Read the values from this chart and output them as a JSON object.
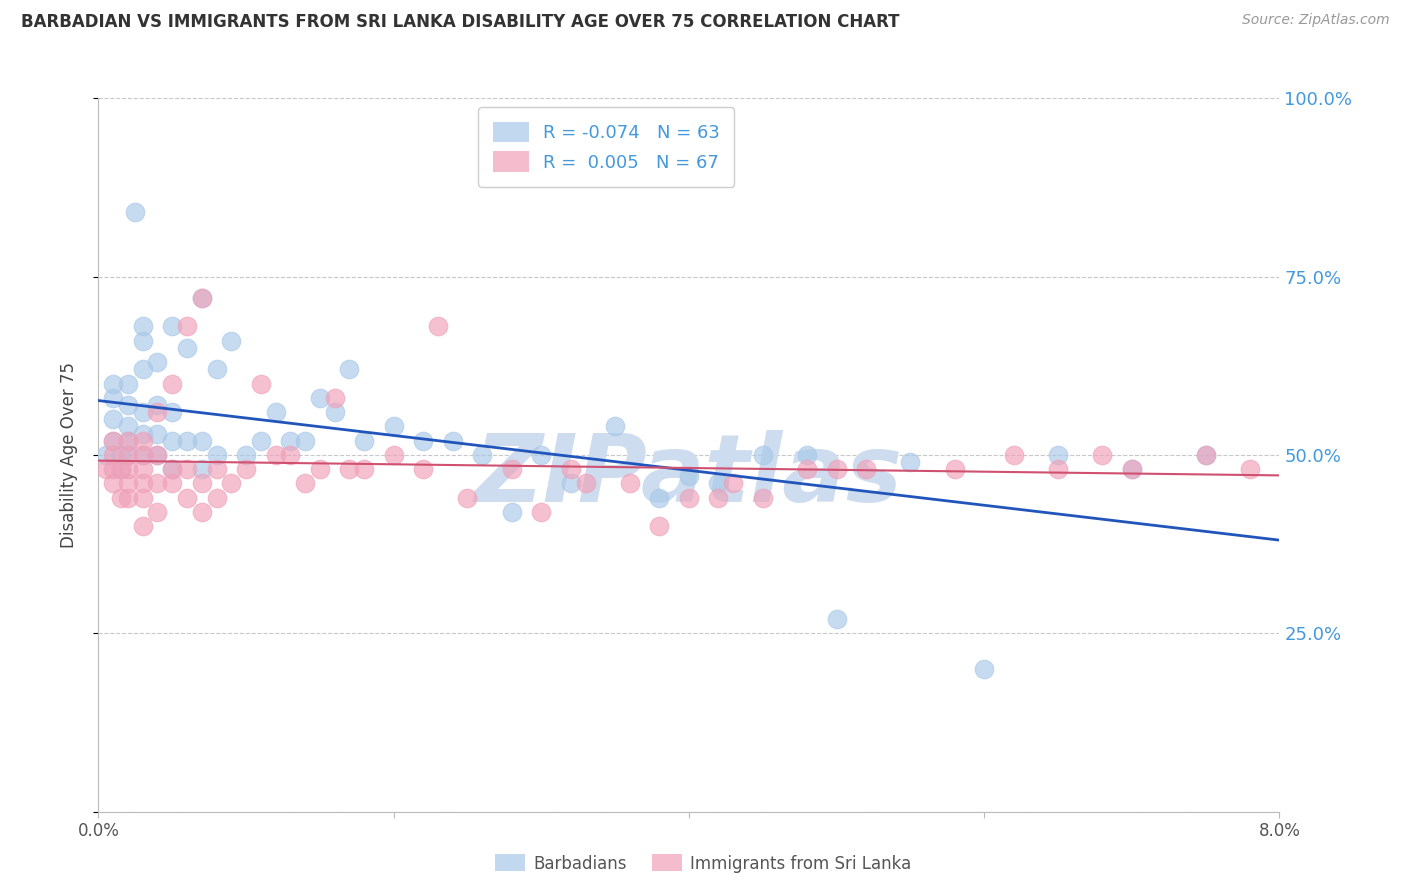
{
  "title": "BARBADIAN VS IMMIGRANTS FROM SRI LANKA DISABILITY AGE OVER 75 CORRELATION CHART",
  "source": "Source: ZipAtlas.com",
  "ylabel": "Disability Age Over 75",
  "blue_R": -0.074,
  "blue_N": 63,
  "pink_R": 0.005,
  "pink_N": 67,
  "blue_color": "#a8c8e8",
  "pink_color": "#f0a0b8",
  "blue_line_color": "#2255bb",
  "pink_line_color": "#d05070",
  "watermark": "ZIPatlas",
  "watermark_color": "#cddcef",
  "legend_label_blue": "Barbadians",
  "legend_label_pink": "Immigrants from Sri Lanka",
  "right_ytick_color": "#4499dd",
  "xlim": [
    0.0,
    0.08
  ],
  "ylim": [
    0.0,
    1.0
  ],
  "blue_x": [
    0.0005,
    0.001,
    0.001,
    0.001,
    0.001,
    0.0015,
    0.0015,
    0.002,
    0.002,
    0.002,
    0.002,
    0.002,
    0.0025,
    0.003,
    0.003,
    0.003,
    0.003,
    0.003,
    0.003,
    0.004,
    0.004,
    0.004,
    0.004,
    0.005,
    0.005,
    0.005,
    0.005,
    0.006,
    0.006,
    0.007,
    0.007,
    0.007,
    0.008,
    0.008,
    0.009,
    0.01,
    0.011,
    0.012,
    0.013,
    0.014,
    0.015,
    0.016,
    0.017,
    0.018,
    0.02,
    0.022,
    0.024,
    0.026,
    0.028,
    0.03,
    0.032,
    0.035,
    0.038,
    0.04,
    0.042,
    0.045,
    0.048,
    0.05,
    0.055,
    0.06,
    0.065,
    0.07,
    0.075
  ],
  "blue_y": [
    0.5,
    0.52,
    0.55,
    0.58,
    0.6,
    0.48,
    0.5,
    0.5,
    0.52,
    0.54,
    0.57,
    0.6,
    0.84,
    0.5,
    0.53,
    0.56,
    0.62,
    0.66,
    0.68,
    0.5,
    0.53,
    0.57,
    0.63,
    0.48,
    0.52,
    0.56,
    0.68,
    0.52,
    0.65,
    0.48,
    0.52,
    0.72,
    0.5,
    0.62,
    0.66,
    0.5,
    0.52,
    0.56,
    0.52,
    0.52,
    0.58,
    0.56,
    0.62,
    0.52,
    0.54,
    0.52,
    0.52,
    0.5,
    0.42,
    0.5,
    0.46,
    0.54,
    0.44,
    0.47,
    0.46,
    0.5,
    0.5,
    0.27,
    0.49,
    0.2,
    0.5,
    0.48,
    0.5
  ],
  "pink_x": [
    0.0005,
    0.001,
    0.001,
    0.001,
    0.001,
    0.0015,
    0.0015,
    0.002,
    0.002,
    0.002,
    0.002,
    0.002,
    0.003,
    0.003,
    0.003,
    0.003,
    0.003,
    0.003,
    0.004,
    0.004,
    0.004,
    0.004,
    0.005,
    0.005,
    0.005,
    0.006,
    0.006,
    0.006,
    0.007,
    0.007,
    0.007,
    0.008,
    0.008,
    0.009,
    0.01,
    0.011,
    0.012,
    0.013,
    0.014,
    0.015,
    0.016,
    0.017,
    0.018,
    0.02,
    0.022,
    0.023,
    0.025,
    0.028,
    0.03,
    0.032,
    0.033,
    0.036,
    0.038,
    0.04,
    0.042,
    0.043,
    0.045,
    0.048,
    0.05,
    0.052,
    0.058,
    0.062,
    0.065,
    0.068,
    0.07,
    0.075,
    0.078
  ],
  "pink_y": [
    0.48,
    0.46,
    0.48,
    0.5,
    0.52,
    0.44,
    0.48,
    0.44,
    0.46,
    0.48,
    0.5,
    0.52,
    0.4,
    0.44,
    0.46,
    0.48,
    0.5,
    0.52,
    0.42,
    0.46,
    0.5,
    0.56,
    0.46,
    0.48,
    0.6,
    0.44,
    0.48,
    0.68,
    0.42,
    0.46,
    0.72,
    0.44,
    0.48,
    0.46,
    0.48,
    0.6,
    0.5,
    0.5,
    0.46,
    0.48,
    0.58,
    0.48,
    0.48,
    0.5,
    0.48,
    0.68,
    0.44,
    0.48,
    0.42,
    0.48,
    0.46,
    0.46,
    0.4,
    0.44,
    0.44,
    0.46,
    0.44,
    0.48,
    0.48,
    0.48,
    0.48,
    0.5,
    0.48,
    0.5,
    0.48,
    0.5,
    0.48
  ]
}
